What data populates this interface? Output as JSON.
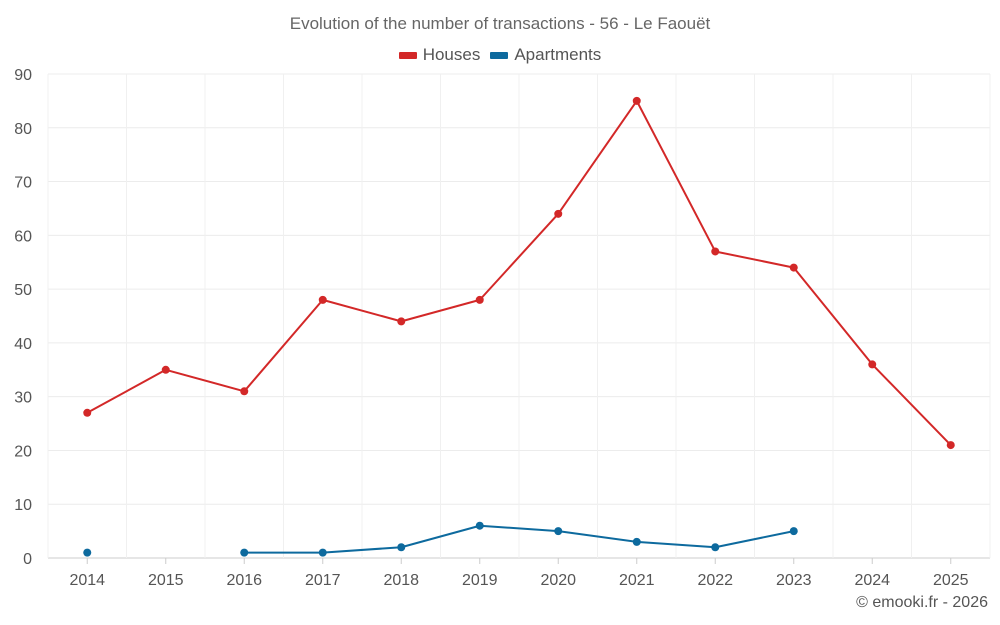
{
  "chart_data": {
    "type": "line",
    "title": "Evolution of the number of transactions - 56 - Le Faouët",
    "categories": [
      "2014",
      "2015",
      "2016",
      "2017",
      "2018",
      "2019",
      "2020",
      "2021",
      "2022",
      "2023",
      "2024",
      "2025"
    ],
    "series": [
      {
        "name": "Houses",
        "color": "#d32828",
        "values": [
          27,
          35,
          31,
          48,
          44,
          48,
          64,
          85,
          57,
          54,
          36,
          21
        ]
      },
      {
        "name": "Apartments",
        "color": "#0d6a9e",
        "values": [
          1,
          null,
          1,
          1,
          2,
          6,
          5,
          3,
          2,
          5,
          null,
          null
        ]
      }
    ],
    "ylim": [
      0,
      90
    ],
    "yticks": [
      0,
      10,
      20,
      30,
      40,
      50,
      60,
      70,
      80,
      90
    ],
    "grid": true,
    "legend_position": "top-center"
  },
  "credit": "© emooki.fr - 2026"
}
